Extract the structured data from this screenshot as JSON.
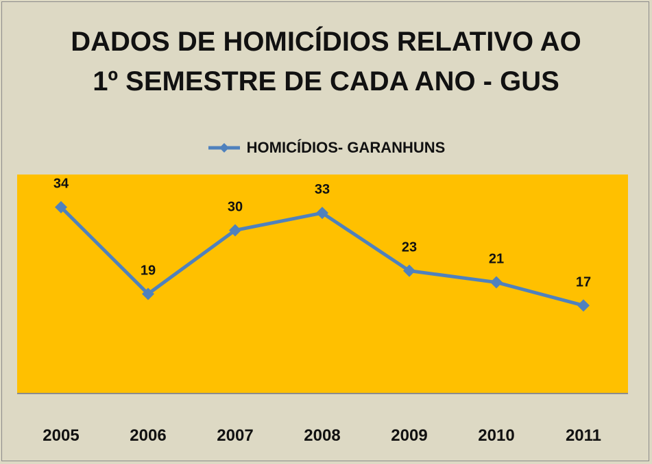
{
  "chart_data": {
    "type": "line",
    "title_lines": [
      "DADOS DE HOMICÍDIOS  RELATIVO AO",
      "1º SEMESTRE DE CADA ANO - GUS"
    ],
    "categories": [
      "2005",
      "2006",
      "2007",
      "2008",
      "2009",
      "2010",
      "2011"
    ],
    "series": [
      {
        "name": "HOMICÍDIOS- GARANHUNS",
        "values": [
          34,
          19,
          30,
          33,
          23,
          21,
          17
        ]
      }
    ],
    "ylim": [
      0,
      40
    ],
    "grid": false,
    "legend_position": "top",
    "colors": {
      "line": "#4f81bd",
      "plot_background": "#ffc000",
      "chart_background": "#ddd9c4"
    }
  }
}
